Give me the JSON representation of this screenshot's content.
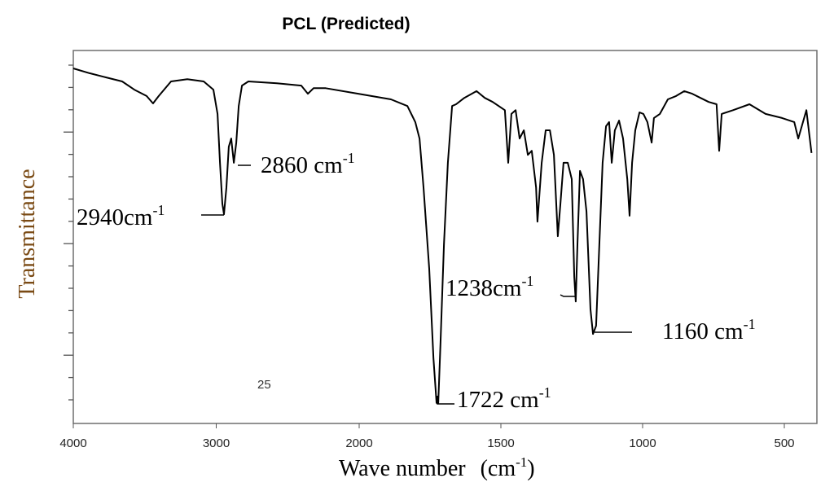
{
  "chart_data": {
    "type": "line",
    "title": "PCL (Predicted)",
    "xlabel": "Wave number",
    "xlabel_unit": "(cm",
    "xlabel_unit_sup": "-1",
    "xlabel_unit_close": ")",
    "ylabel": "Transmittance",
    "xlim": [
      4000,
      400
    ],
    "x_axis_reversed": true,
    "x_scale_break": 2000,
    "ylim": [
      0,
      100
    ],
    "y_tick_labels_shown": false,
    "grid": false,
    "x_ticks": [
      "4000",
      "3000",
      "2000",
      "1500",
      "1000",
      "500"
    ],
    "stray_text": "25",
    "colors": {
      "line": "#000000",
      "ylabel": "#7a4a14",
      "frame": "#6e6e6e"
    },
    "series": [
      {
        "x": [
          4000,
          3886,
          3772,
          3658,
          3573,
          3487,
          3442,
          3402,
          3316,
          3202,
          3088,
          3020,
          2991,
          2974,
          2957,
          2946,
          2929,
          2912,
          2895,
          2877,
          2860,
          2843,
          2820,
          2775,
          2576,
          2405,
          2359,
          2319,
          2234,
          2006,
          1888,
          1830,
          1802,
          1787,
          1773,
          1753,
          1738,
          1727,
          1721,
          1713,
          1701,
          1687,
          1672,
          1658,
          1629,
          1586,
          1557,
          1529,
          1486,
          1474,
          1463,
          1448,
          1434,
          1419,
          1405,
          1391,
          1376,
          1371,
          1356,
          1342,
          1327,
          1313,
          1299,
          1290,
          1279,
          1264,
          1250,
          1241,
          1236,
          1230,
          1221,
          1210,
          1198,
          1184,
          1175,
          1164,
          1155,
          1141,
          1129,
          1118,
          1109,
          1098,
          1083,
          1069,
          1054,
          1046,
          1037,
          1026,
          1011,
          997,
          983,
          968,
          960,
          939,
          911,
          882,
          853,
          825,
          796,
          767,
          739,
          730,
          721,
          681,
          623,
          566,
          508,
          465,
          451,
          422,
          404
        ],
        "y": [
          95.2,
          93.9,
          92.8,
          91.7,
          89.5,
          87.8,
          85.8,
          87.8,
          91.7,
          92.3,
          91.7,
          89.5,
          83.0,
          69.9,
          58.9,
          56.1,
          63.3,
          74.2,
          76.4,
          69.9,
          75.3,
          85.1,
          90.6,
          91.7,
          91.2,
          90.6,
          88.4,
          89.9,
          89.9,
          88.4,
          86.9,
          85.1,
          80.8,
          76.4,
          63.3,
          41.5,
          17.5,
          5.5,
          5.5,
          21.8,
          48.0,
          69.9,
          85.1,
          85.6,
          87.3,
          89.1,
          87.3,
          86.2,
          84.0,
          69.9,
          83.0,
          84.0,
          76.4,
          78.6,
          72.0,
          73.1,
          63.3,
          54.1,
          69.9,
          78.6,
          78.6,
          72.0,
          50.2,
          58.9,
          69.9,
          69.9,
          65.5,
          39.3,
          32.7,
          48.0,
          67.7,
          65.5,
          56.8,
          30.6,
          24.0,
          26.2,
          43.7,
          69.9,
          79.7,
          80.8,
          69.9,
          78.6,
          81.2,
          76.4,
          65.5,
          55.7,
          69.9,
          78.6,
          83.4,
          83.0,
          80.8,
          75.3,
          81.9,
          83.0,
          86.9,
          87.8,
          89.1,
          88.4,
          87.3,
          86.2,
          85.6,
          73.1,
          83.0,
          84.0,
          85.6,
          83.0,
          81.9,
          80.8,
          76.4,
          84.0,
          72.5
        ]
      }
    ],
    "annotations": [
      {
        "text": "2860 cm",
        "sup": "-1",
        "wavenumber": 2860
      },
      {
        "text": "2940cm",
        "sup": "-1",
        "wavenumber": 2940
      },
      {
        "text": "1238cm",
        "sup": "-1",
        "wavenumber": 1238
      },
      {
        "text": "1160 cm",
        "sup": "-1",
        "wavenumber": 1160
      },
      {
        "text": "1722 cm",
        "sup": "-1",
        "wavenumber": 1722
      }
    ]
  }
}
